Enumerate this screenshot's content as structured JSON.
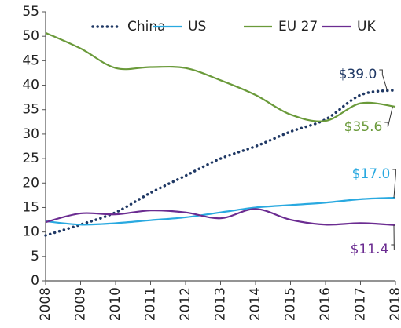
{
  "chart_data": {
    "type": "line",
    "x": [
      2008,
      2009,
      2010,
      2011,
      2012,
      2013,
      2014,
      2015,
      2016,
      2017,
      2018
    ],
    "series": [
      {
        "name": "China",
        "color": "#1f3864",
        "dash": "dotted",
        "values": [
          9.3,
          11.5,
          14,
          18,
          21.5,
          25,
          27.5,
          30.5,
          33,
          38,
          39.0
        ],
        "value_labels": [
          null,
          null,
          null,
          null,
          null,
          null,
          null,
          null,
          null,
          null,
          "$39.0"
        ]
      },
      {
        "name": "US",
        "color": "#29a9e0",
        "values": [
          12.2,
          11.5,
          11.8,
          12.4,
          13,
          14,
          15,
          15.5,
          16,
          16.7,
          17.0
        ],
        "value_labels": [
          null,
          null,
          null,
          null,
          null,
          null,
          null,
          null,
          null,
          null,
          "$17.0"
        ]
      },
      {
        "name": "EU 27",
        "color": "#6a9a3a",
        "values": [
          50.7,
          47.5,
          43.5,
          43.7,
          43.5,
          41,
          38,
          34,
          32.7,
          36.3,
          35.6
        ],
        "value_labels": [
          null,
          null,
          null,
          null,
          null,
          null,
          null,
          null,
          null,
          null,
          "$35.6"
        ]
      },
      {
        "name": "UK",
        "color": "#6b2c91",
        "values": [
          12,
          13.8,
          13.6,
          14.4,
          14,
          12.8,
          14.7,
          12.5,
          11.5,
          11.8,
          11.4
        ],
        "value_labels": [
          null,
          null,
          null,
          null,
          null,
          null,
          null,
          null,
          null,
          null,
          "$11.4"
        ]
      }
    ],
    "xlim": [
      2008,
      2018
    ],
    "xticks": [
      2008,
      2009,
      2010,
      2011,
      2012,
      2013,
      2014,
      2015,
      2016,
      2017,
      2018
    ],
    "ylim": [
      0,
      55
    ],
    "yticks": [
      0,
      5,
      10,
      15,
      20,
      25,
      30,
      35,
      40,
      45,
      50,
      55
    ],
    "legend": "top"
  }
}
